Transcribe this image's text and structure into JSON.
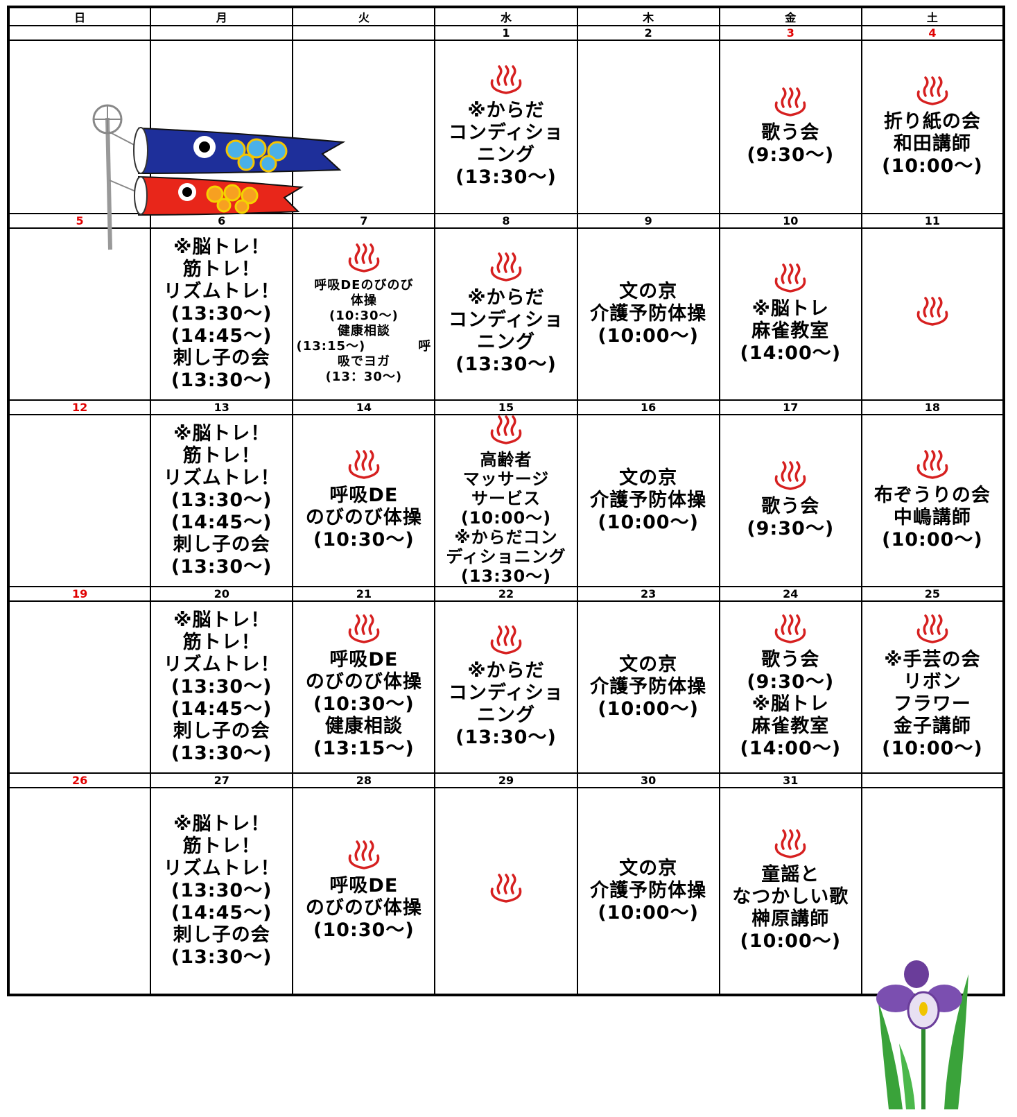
{
  "weekdays": [
    "日",
    "月",
    "火",
    "水",
    "木",
    "金",
    "土"
  ],
  "weeks": [
    {
      "days": [
        {
          "date": null,
          "events": []
        },
        {
          "date": null,
          "events": []
        },
        {
          "date": null,
          "events": []
        },
        {
          "date": 1,
          "onsen": true,
          "events": [
            "※からだ",
            "コンディショ",
            "ニング",
            "(13:30～)"
          ]
        },
        {
          "date": 2,
          "events": []
        },
        {
          "date": 3,
          "color": "#e00000",
          "onsen": true,
          "events": [
            "歌う会",
            "(9:30～)"
          ]
        },
        {
          "date": 4,
          "color": "#e00000",
          "onsen": true,
          "events": [
            "折り紙の会",
            "和田講師",
            "(10:00～)"
          ]
        }
      ]
    },
    {
      "days": [
        {
          "date": 5,
          "color": "#e00000",
          "events": []
        },
        {
          "date": 6,
          "events": [
            "※脳トレ！",
            "筋トレ！",
            "リズムトレ！",
            "(13:30～)",
            "(14:45～)",
            "刺し子の会",
            "(13:30～)"
          ]
        },
        {
          "date": 7,
          "onsen": true,
          "events": [
            "呼吸DEのびのび",
            "体操",
            "(10:30～)",
            "健康相談",
            "(13:15～)　　　　呼",
            "吸でヨガ",
            "(13：30～)"
          ]
        },
        {
          "date": 8,
          "onsen": true,
          "events": [
            "※からだ",
            "コンディショ",
            "ニング",
            "(13:30～)"
          ]
        },
        {
          "date": 9,
          "events": [
            "文の京",
            "介護予防体操",
            "(10:00～)"
          ]
        },
        {
          "date": 10,
          "onsen": true,
          "events": [
            "※脳トレ",
            "麻雀教室",
            "(14:00～)"
          ]
        },
        {
          "date": 11,
          "onsen": true,
          "events": []
        }
      ]
    },
    {
      "days": [
        {
          "date": 12,
          "color": "#e00000",
          "events": []
        },
        {
          "date": 13,
          "events": [
            "※脳トレ！",
            "筋トレ！",
            "リズムトレ！",
            "(13:30～)",
            "(14:45～)",
            "刺し子の会",
            "(13:30～)"
          ]
        },
        {
          "date": 14,
          "onsen": true,
          "events": [
            "呼吸DE",
            "のびのび体操",
            "(10:30～)"
          ]
        },
        {
          "date": 15,
          "onsen": true,
          "events": [
            "高齢者",
            "マッサージ",
            "サービス",
            "(10:00～)",
            "※からだコン",
            "ディショニング",
            "(13:30～)"
          ]
        },
        {
          "date": 16,
          "events": [
            "文の京",
            "介護予防体操",
            "(10:00～)"
          ]
        },
        {
          "date": 17,
          "onsen": true,
          "events": [
            "歌う会",
            "(9:30～)"
          ]
        },
        {
          "date": 18,
          "onsen": true,
          "events": [
            "布ぞうりの会",
            "中嶋講師",
            "(10:00～)"
          ]
        }
      ]
    },
    {
      "days": [
        {
          "date": 19,
          "color": "#e00000",
          "events": []
        },
        {
          "date": 20,
          "events": [
            "※脳トレ！",
            "筋トレ！",
            "リズムトレ！",
            "(13:30～)",
            "(14:45～)",
            "刺し子の会",
            "(13:30～)"
          ]
        },
        {
          "date": 21,
          "onsen": true,
          "events": [
            "呼吸DE",
            "のびのび体操",
            "(10:30～)",
            "健康相談",
            "(13:15～)"
          ]
        },
        {
          "date": 22,
          "onsen": true,
          "events": [
            "※からだ",
            "コンディショ",
            "ニング",
            "(13:30～)"
          ]
        },
        {
          "date": 23,
          "events": [
            "文の京",
            "介護予防体操",
            "(10:00～)"
          ]
        },
        {
          "date": 24,
          "onsen": true,
          "events": [
            "歌う会",
            "(9:30～)",
            "※脳トレ",
            "麻雀教室",
            "(14:00～)"
          ]
        },
        {
          "date": 25,
          "onsen": true,
          "events": [
            "※手芸の会",
            "リボン",
            "フラワー",
            "金子講師",
            "(10:00～)"
          ]
        }
      ]
    },
    {
      "days": [
        {
          "date": 26,
          "color": "#e00000",
          "events": []
        },
        {
          "date": 27,
          "events": [
            "※脳トレ！",
            "筋トレ！",
            "リズムトレ！",
            "(13:30～)",
            "(14:45～)",
            "刺し子の会",
            "(13:30～)"
          ]
        },
        {
          "date": 28,
          "onsen": true,
          "events": [
            "呼吸DE",
            "のびのび体操",
            "(10:30～)"
          ]
        },
        {
          "date": 29,
          "onsen": true,
          "events": []
        },
        {
          "date": 30,
          "events": [
            "文の京",
            "介護予防体操",
            "(10:00～)"
          ]
        },
        {
          "date": 31,
          "onsen": true,
          "events": [
            "童謡と",
            "なつかしい歌",
            "榊原講師",
            "(10:00～)"
          ]
        },
        {
          "date": null,
          "events": []
        }
      ]
    }
  ]
}
